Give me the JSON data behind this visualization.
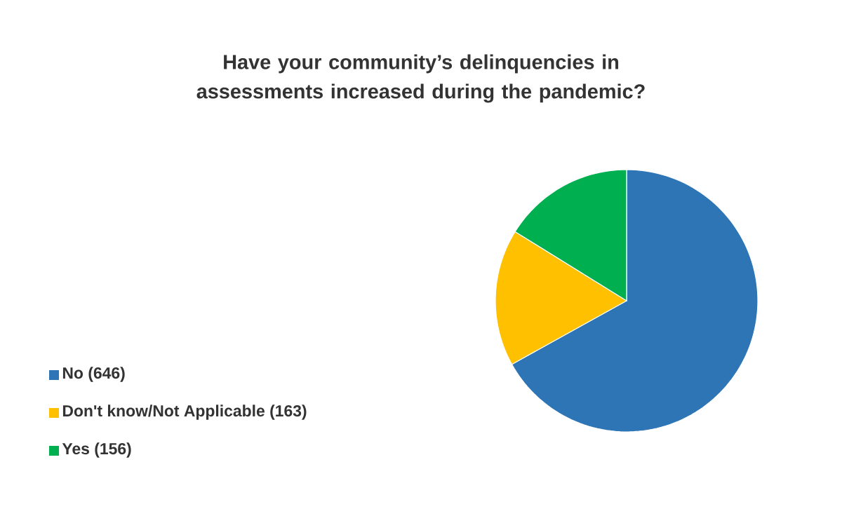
{
  "chart_data": {
    "type": "pie",
    "title": "Have your community’s delinquencies in assessments increased during the pandemic?",
    "categories": [
      "No (646)",
      "Don't know/Not Applicable (163)",
      "Yes (156)"
    ],
    "values": [
      646,
      163,
      156
    ],
    "colors": [
      "#2e75b6",
      "#ffc000",
      "#00b050"
    ],
    "legend": "left"
  }
}
